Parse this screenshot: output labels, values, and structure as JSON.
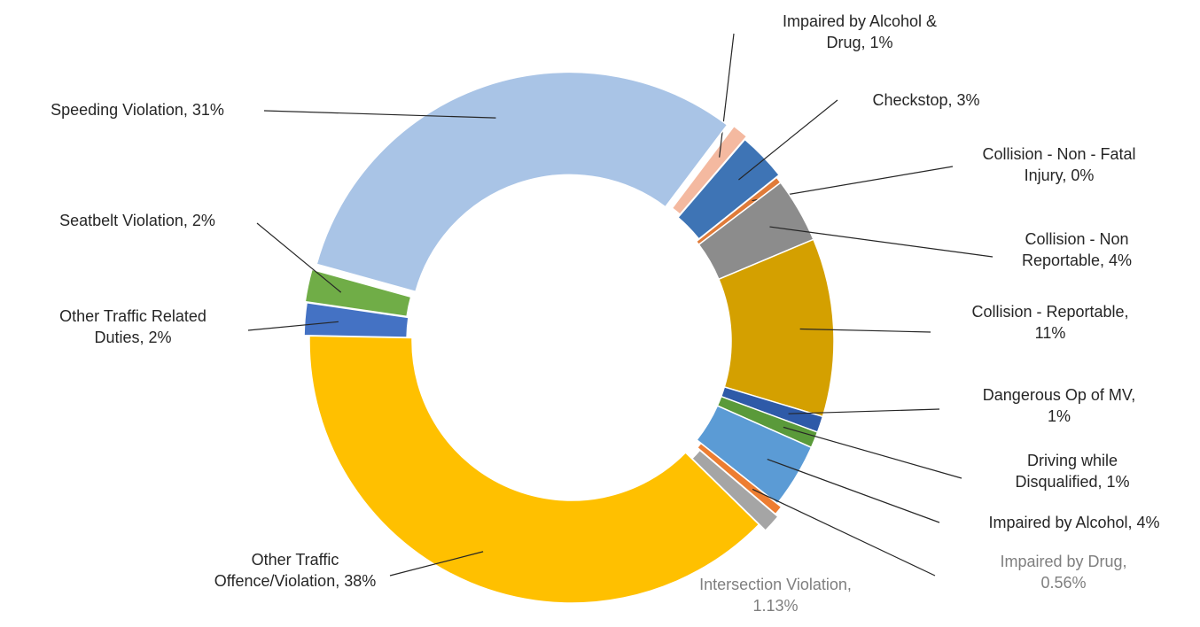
{
  "chart_data": {
    "type": "donut",
    "labels": [
      "Impaired by Alcohol & Drug, 1%",
      "Checkstop, 3%",
      "Collision - Non - Fatal Injury, 0%",
      "Collision - Non Reportable, 4%",
      "Collision - Reportable, 11%",
      "Dangerous Op of MV, 1%",
      "Driving while Disqualified, 1%",
      "Impaired by Alcohol, 4%",
      "Impaired by Drug, 0.56%",
      "Intersection Violation, 1.13%",
      "Other Traffic Offence/Violation, 38%",
      "Other Traffic Related Duties, 2%",
      "Seatbelt Violation, 2%",
      "Speeding Violation, 31%"
    ],
    "values": [
      1,
      3,
      0.4,
      4,
      11,
      1,
      1,
      4,
      0.56,
      1.13,
      38,
      2,
      2,
      31
    ],
    "colors": [
      "#f4b9a0",
      "#3e74b5",
      "#e07b39",
      "#8c8c8c",
      "#d4a000",
      "#2e5aa8",
      "#5a9a3a",
      "#5b9bd5",
      "#ed7d31",
      "#a5a5a5",
      "#ffc000",
      "#4472c4",
      "#70ad47",
      "#a9c4e6"
    ]
  }
}
